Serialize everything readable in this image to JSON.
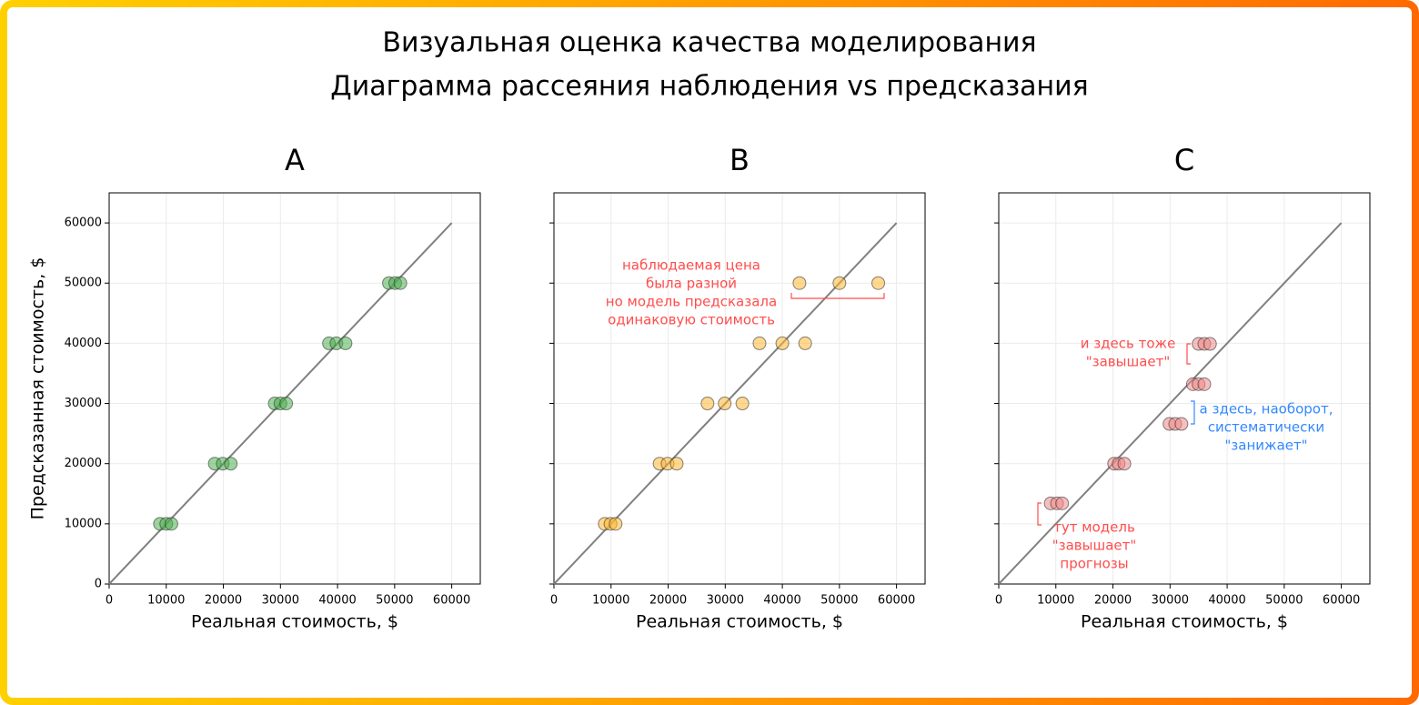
{
  "title": [
    "Визуальная оценка качества моделирования",
    "Диаграмма рассеяния наблюдения vs предсказания"
  ],
  "chart_data": [
    {
      "type": "scatter",
      "title": "A",
      "x_label": "Реальная стоимость, $",
      "y_label": "Предсказанная стоимость, $",
      "x": [
        8900,
        10000,
        10900,
        18500,
        19900,
        21300,
        29000,
        30000,
        31000,
        38500,
        39800,
        41400,
        49000,
        50100,
        51000
      ],
      "values": [
        10000,
        10000,
        10000,
        20000,
        20000,
        20000,
        30000,
        30000,
        30000,
        40000,
        40000,
        40000,
        50000,
        50000,
        50000
      ],
      "color": "#4caf50",
      "reference_line": {
        "x": [
          0,
          60000
        ],
        "y": [
          0,
          60000
        ],
        "color": "#808080"
      },
      "xlim": [
        0,
        65000
      ],
      "ylim": [
        0,
        65000
      ],
      "xticks": [
        0,
        10000,
        20000,
        30000,
        40000,
        50000,
        60000
      ],
      "yticks": [
        0,
        10000,
        20000,
        30000,
        40000,
        50000,
        60000
      ],
      "show_ytick_labels": true,
      "grid": true,
      "annotations": []
    },
    {
      "type": "scatter",
      "title": "B",
      "x_label": "Реальная стоимость, $",
      "x": [
        8900,
        9900,
        10800,
        18500,
        19900,
        21500,
        26900,
        29900,
        33000,
        36000,
        40000,
        44000,
        43000,
        50000,
        56800
      ],
      "values": [
        10000,
        10000,
        10000,
        20000,
        20000,
        20000,
        30000,
        30000,
        30000,
        40000,
        40000,
        40000,
        50000,
        50000,
        50000
      ],
      "color": "#ffb833",
      "reference_line": {
        "x": [
          0,
          60000
        ],
        "y": [
          0,
          60000
        ],
        "color": "#808080"
      },
      "xlim": [
        0,
        65000
      ],
      "ylim": [
        0,
        65000
      ],
      "xticks": [
        0,
        10000,
        20000,
        30000,
        40000,
        50000,
        60000
      ],
      "yticks": [
        0,
        10000,
        20000,
        30000,
        40000,
        50000,
        60000
      ],
      "show_ytick_labels": false,
      "grid": true,
      "annotations": [
        {
          "lines": [
            "наблюдаемая цена",
            "была разной",
            "но модель предсказала",
            "одинаковую стоимость"
          ],
          "color": "#ff4d4d"
        }
      ]
    },
    {
      "type": "scatter",
      "title": "C",
      "x_label": "Реальная стоимость, $",
      "x": [
        9100,
        10200,
        11100,
        20200,
        21000,
        22000,
        29900,
        30900,
        32000,
        34000,
        35000,
        36000,
        35000,
        36000,
        37000
      ],
      "values": [
        13400,
        13400,
        13400,
        20000,
        20000,
        20000,
        26600,
        26600,
        26600,
        33200,
        33200,
        33200,
        39900,
        39900,
        39900
      ],
      "color": "#ee8888",
      "reference_line": {
        "x": [
          0,
          60000
        ],
        "y": [
          0,
          60000
        ],
        "color": "#808080"
      },
      "xlim": [
        0,
        65000
      ],
      "ylim": [
        0,
        65000
      ],
      "xticks": [
        0,
        10000,
        20000,
        30000,
        40000,
        50000,
        60000
      ],
      "yticks": [
        0,
        10000,
        20000,
        30000,
        40000,
        50000,
        60000
      ],
      "show_ytick_labels": false,
      "grid": true,
      "annotations": [
        {
          "lines": [
            "и здесь тоже",
            "\"завышает\""
          ],
          "color": "#ff4d4d"
        },
        {
          "lines": [
            "а здесь, наоборот,",
            "систематически",
            "\"занижает\""
          ],
          "color": "#3388ff"
        },
        {
          "lines": [
            "тут модель",
            "\"завышает\"",
            "прогнозы"
          ],
          "color": "#ff4d4d"
        }
      ]
    }
  ]
}
